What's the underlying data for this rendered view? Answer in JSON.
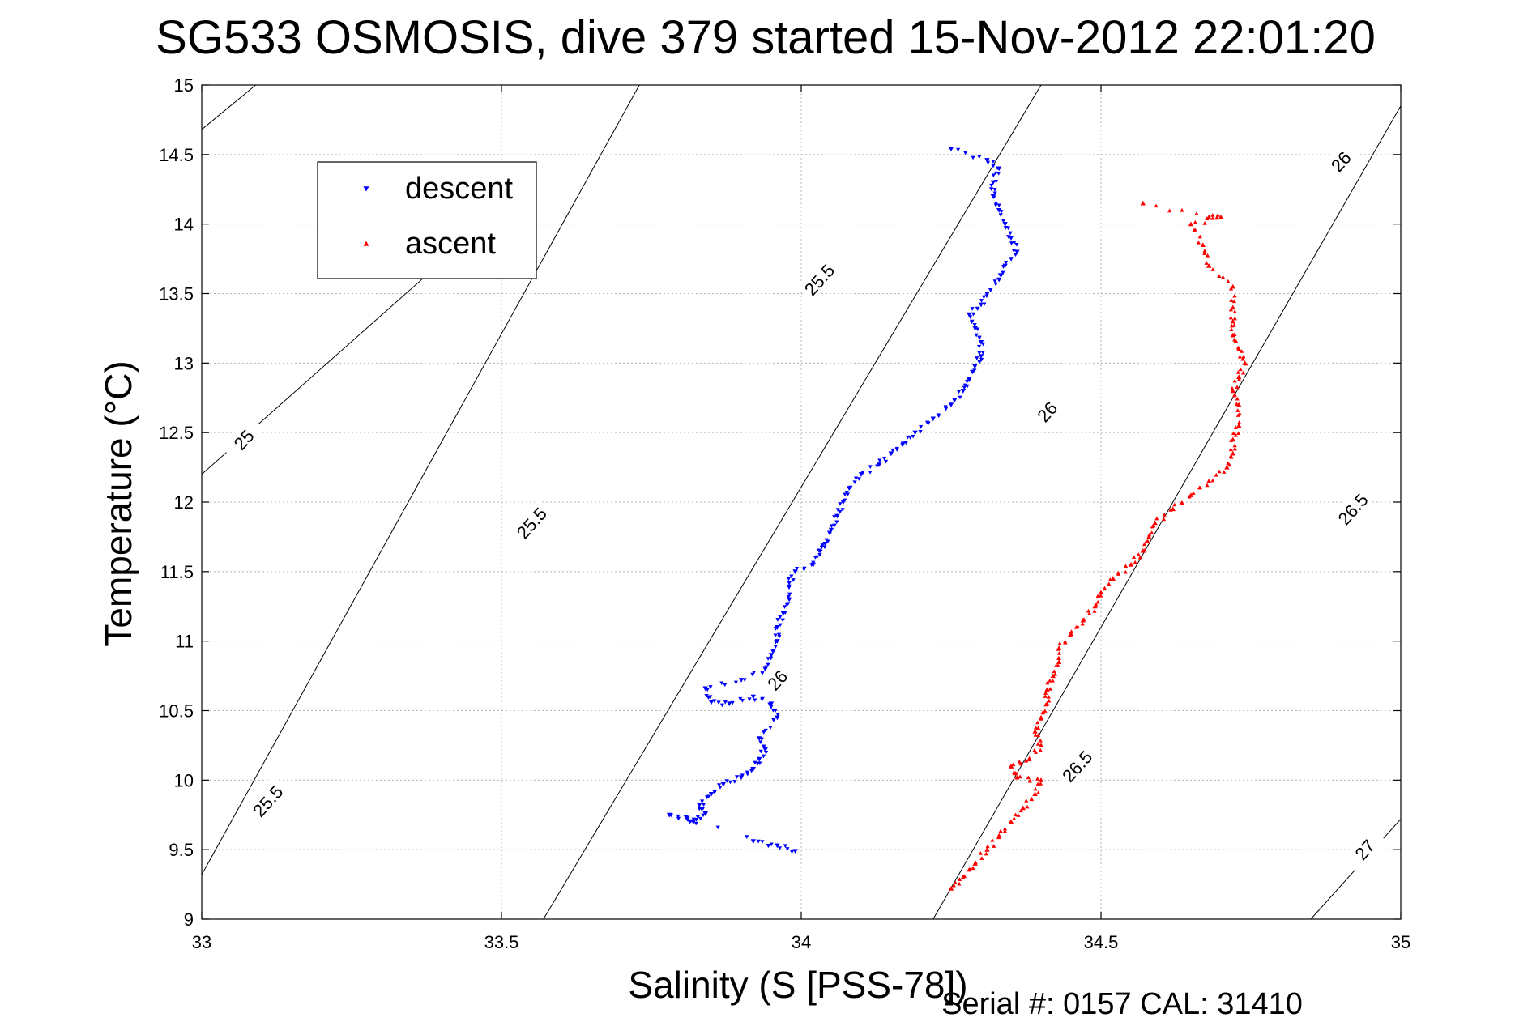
{
  "chart_data": {
    "type": "scatter",
    "title": "SG533 OSMOSIS, dive 379 started 15-Nov-2012 22:01:20",
    "xlabel": "Salinity (S [PSS-78])",
    "ylabel": "Temperature (°C)",
    "xlim": [
      33,
      35
    ],
    "ylim": [
      9,
      15
    ],
    "x_ticks": [
      33,
      33.5,
      34,
      34.5,
      35
    ],
    "x_tick_labels": [
      "33",
      "33.5",
      "34",
      "34.5",
      "35"
    ],
    "y_ticks": [
      9,
      9.5,
      10,
      10.5,
      11,
      11.5,
      12,
      12.5,
      13,
      13.5,
      14,
      14.5,
      15
    ],
    "y_tick_labels": [
      "9",
      "9.5",
      "10",
      "10.5",
      "11",
      "11.5",
      "12",
      "12.5",
      "13",
      "13.5",
      "14",
      "14.5",
      "15"
    ],
    "grid": true,
    "legend_position": "top-left",
    "series": [
      {
        "name": "descent",
        "marker": "triangle-down",
        "color": "#0000ff",
        "points": [
          [
            33.92,
            9.56
          ],
          [
            33.96,
            9.53
          ],
          [
            33.99,
            9.49
          ],
          [
            33.78,
            9.75
          ],
          [
            33.81,
            9.72
          ],
          [
            33.82,
            9.7
          ],
          [
            33.84,
            9.76
          ],
          [
            33.83,
            9.82
          ],
          [
            33.85,
            9.9
          ],
          [
            33.87,
            9.97
          ],
          [
            33.9,
            10.02
          ],
          [
            33.92,
            10.08
          ],
          [
            33.93,
            10.15
          ],
          [
            33.94,
            10.22
          ],
          [
            33.93,
            10.3
          ],
          [
            33.96,
            10.45
          ],
          [
            33.95,
            10.55
          ],
          [
            33.92,
            10.6
          ],
          [
            33.88,
            10.55
          ],
          [
            33.85,
            10.56
          ],
          [
            33.84,
            10.66
          ],
          [
            33.9,
            10.72
          ],
          [
            33.94,
            10.8
          ],
          [
            33.95,
            10.9
          ],
          [
            33.96,
            11.0
          ],
          [
            33.96,
            11.1
          ],
          [
            33.97,
            11.2
          ],
          [
            33.98,
            11.3
          ],
          [
            33.98,
            11.42
          ],
          [
            33.99,
            11.5
          ],
          [
            34.02,
            11.55
          ],
          [
            34.03,
            11.65
          ],
          [
            34.04,
            11.7
          ],
          [
            34.05,
            11.8
          ],
          [
            34.06,
            11.9
          ],
          [
            34.07,
            12.0
          ],
          [
            34.08,
            12.1
          ],
          [
            34.1,
            12.2
          ],
          [
            34.13,
            12.27
          ],
          [
            34.15,
            12.35
          ],
          [
            34.17,
            12.42
          ],
          [
            34.19,
            12.5
          ],
          [
            34.22,
            12.6
          ],
          [
            34.25,
            12.7
          ],
          [
            34.27,
            12.8
          ],
          [
            34.28,
            12.88
          ],
          [
            34.29,
            12.98
          ],
          [
            34.3,
            13.05
          ],
          [
            34.3,
            13.15
          ],
          [
            34.29,
            13.25
          ],
          [
            34.28,
            13.35
          ],
          [
            34.3,
            13.42
          ],
          [
            34.31,
            13.5
          ],
          [
            34.33,
            13.6
          ],
          [
            34.34,
            13.7
          ],
          [
            34.36,
            13.8
          ],
          [
            34.35,
            13.9
          ],
          [
            34.34,
            14.0
          ],
          [
            34.33,
            14.1
          ],
          [
            34.32,
            14.2
          ],
          [
            34.32,
            14.3
          ],
          [
            34.33,
            14.4
          ],
          [
            34.31,
            14.46
          ],
          [
            34.25,
            14.54
          ]
        ]
      },
      {
        "name": "ascent",
        "marker": "triangle-up",
        "color": "#ff0000",
        "points": [
          [
            34.25,
            9.22
          ],
          [
            34.27,
            9.3
          ],
          [
            34.29,
            9.4
          ],
          [
            34.31,
            9.5
          ],
          [
            34.33,
            9.6
          ],
          [
            34.35,
            9.7
          ],
          [
            34.37,
            9.8
          ],
          [
            34.39,
            9.9
          ],
          [
            34.4,
            10.0
          ],
          [
            34.36,
            10.02
          ],
          [
            34.35,
            10.1
          ],
          [
            34.38,
            10.15
          ],
          [
            34.4,
            10.25
          ],
          [
            34.39,
            10.35
          ],
          [
            34.4,
            10.45
          ],
          [
            34.41,
            10.55
          ],
          [
            34.41,
            10.65
          ],
          [
            34.42,
            10.75
          ],
          [
            34.43,
            10.85
          ],
          [
            34.43,
            10.95
          ],
          [
            34.45,
            11.05
          ],
          [
            34.47,
            11.15
          ],
          [
            34.49,
            11.25
          ],
          [
            34.5,
            11.35
          ],
          [
            34.52,
            11.45
          ],
          [
            34.55,
            11.55
          ],
          [
            34.57,
            11.65
          ],
          [
            34.58,
            11.75
          ],
          [
            34.59,
            11.85
          ],
          [
            34.62,
            11.95
          ],
          [
            34.65,
            12.05
          ],
          [
            34.68,
            12.15
          ],
          [
            34.71,
            12.25
          ],
          [
            34.72,
            12.35
          ],
          [
            34.72,
            12.45
          ],
          [
            34.73,
            12.55
          ],
          [
            34.73,
            12.7
          ],
          [
            34.72,
            12.8
          ],
          [
            34.73,
            12.9
          ],
          [
            34.74,
            13.0
          ],
          [
            34.73,
            13.1
          ],
          [
            34.72,
            13.2
          ],
          [
            34.72,
            13.3
          ],
          [
            34.72,
            13.4
          ],
          [
            34.72,
            13.55
          ],
          [
            34.68,
            13.7
          ],
          [
            34.67,
            13.85
          ],
          [
            34.65,
            14.0
          ],
          [
            34.7,
            14.05
          ],
          [
            34.68,
            14.05
          ],
          [
            34.57,
            14.15
          ]
        ]
      }
    ],
    "density_contours": [
      {
        "level": "25",
        "label": "25",
        "points": [
          [
            33.0,
            14.68
          ],
          [
            33.09,
            15.0
          ]
        ]
      },
      {
        "level": "25",
        "label": "25",
        "points": [
          [
            33.0,
            12.2
          ],
          [
            33.55,
            14.3
          ]
        ]
      },
      {
        "level": "25.5",
        "label": "25.5",
        "points": [
          [
            33.0,
            9.32
          ],
          [
            33.73,
            15.0
          ]
        ]
      },
      {
        "level": "25.5",
        "label": "25.5",
        "points": [
          [
            33.57,
            9.0
          ],
          [
            34.4,
            15.0
          ]
        ]
      },
      {
        "level": "26",
        "label": "26",
        "points": [
          [
            34.22,
            9.0
          ],
          [
            35.0,
            14.85
          ]
        ]
      },
      {
        "level": "26.5",
        "label": "26.5",
        "points": [
          [
            34.85,
            9.0
          ],
          [
            35.0,
            9.72
          ]
        ]
      }
    ],
    "contour_labels": [
      {
        "text": "25",
        "x": 33.07,
        "y": 12.45
      },
      {
        "text": "25.5",
        "x": 33.11,
        "y": 9.85
      },
      {
        "text": "25.5",
        "x": 33.55,
        "y": 11.85
      },
      {
        "text": "25.5",
        "x": 34.03,
        "y": 13.6
      },
      {
        "text": "26",
        "x": 33.96,
        "y": 10.72
      },
      {
        "text": "26",
        "x": 34.41,
        "y": 12.65
      },
      {
        "text": "26",
        "x": 34.9,
        "y": 14.45
      },
      {
        "text": "26.5",
        "x": 34.46,
        "y": 10.1
      },
      {
        "text": "26.5",
        "x": 34.92,
        "y": 11.95
      },
      {
        "text": "27",
        "x": 34.94,
        "y": 9.5
      }
    ],
    "footer": "Serial #: 0157  CAL: 31410"
  }
}
